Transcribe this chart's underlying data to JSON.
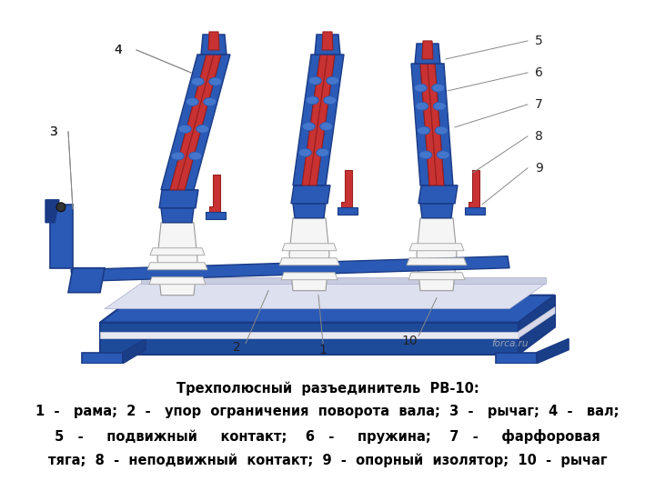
{
  "background_color": "#ffffff",
  "title_text": "Трехполюсный  разъединитель  РВ-10:",
  "caption_line1": "1  -   рама;  2  -   упор  ограничения  поворота  вала;  3  -   рычаг;  4  -   вал;",
  "caption_line2": "5   -     подвижный     контакт;    6   -     пружина;    7   -     фарфоровая",
  "caption_line3": "тяга;  8  -  неподвижный  контакт;  9  -  опорный  изолятор;  10  -  рычаг",
  "watermark": "forca.ru",
  "label_fontsize": 10,
  "caption_fontsize": 10.5,
  "title_fontsize": 10.5,
  "fig_width": 7.2,
  "fig_height": 5.4,
  "base_color": "#2a5ab5",
  "base_edge": "#1a3a85",
  "red_color": "#c83232",
  "red_edge": "#9a2020",
  "white_color": "#f5f5f5",
  "grey_color": "#c8c8c8",
  "line_color": "#888888",
  "label_color": "#222222"
}
